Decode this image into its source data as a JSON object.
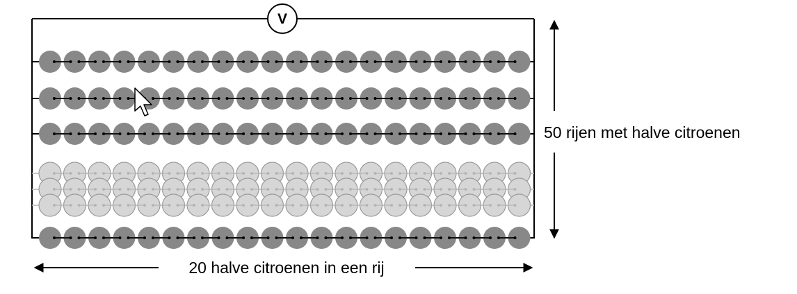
{
  "voltmeter": {
    "symbol": "V"
  },
  "rows_label": "50 rijen met halve citroenen",
  "columns_label": "20 halve citroenen in een rij",
  "lemons_per_row": 20,
  "visible_solid_rows": 4,
  "faded_rows": 3,
  "colors": {
    "lemon": "#888888",
    "lemon_faded": "#d6d6d6",
    "lemon_faded_outline": "#9a9a9a",
    "wire": "#000000",
    "faded_wire": "#b5b5b5"
  },
  "cursor": {
    "icon": "mouse-pointer-icon"
  }
}
